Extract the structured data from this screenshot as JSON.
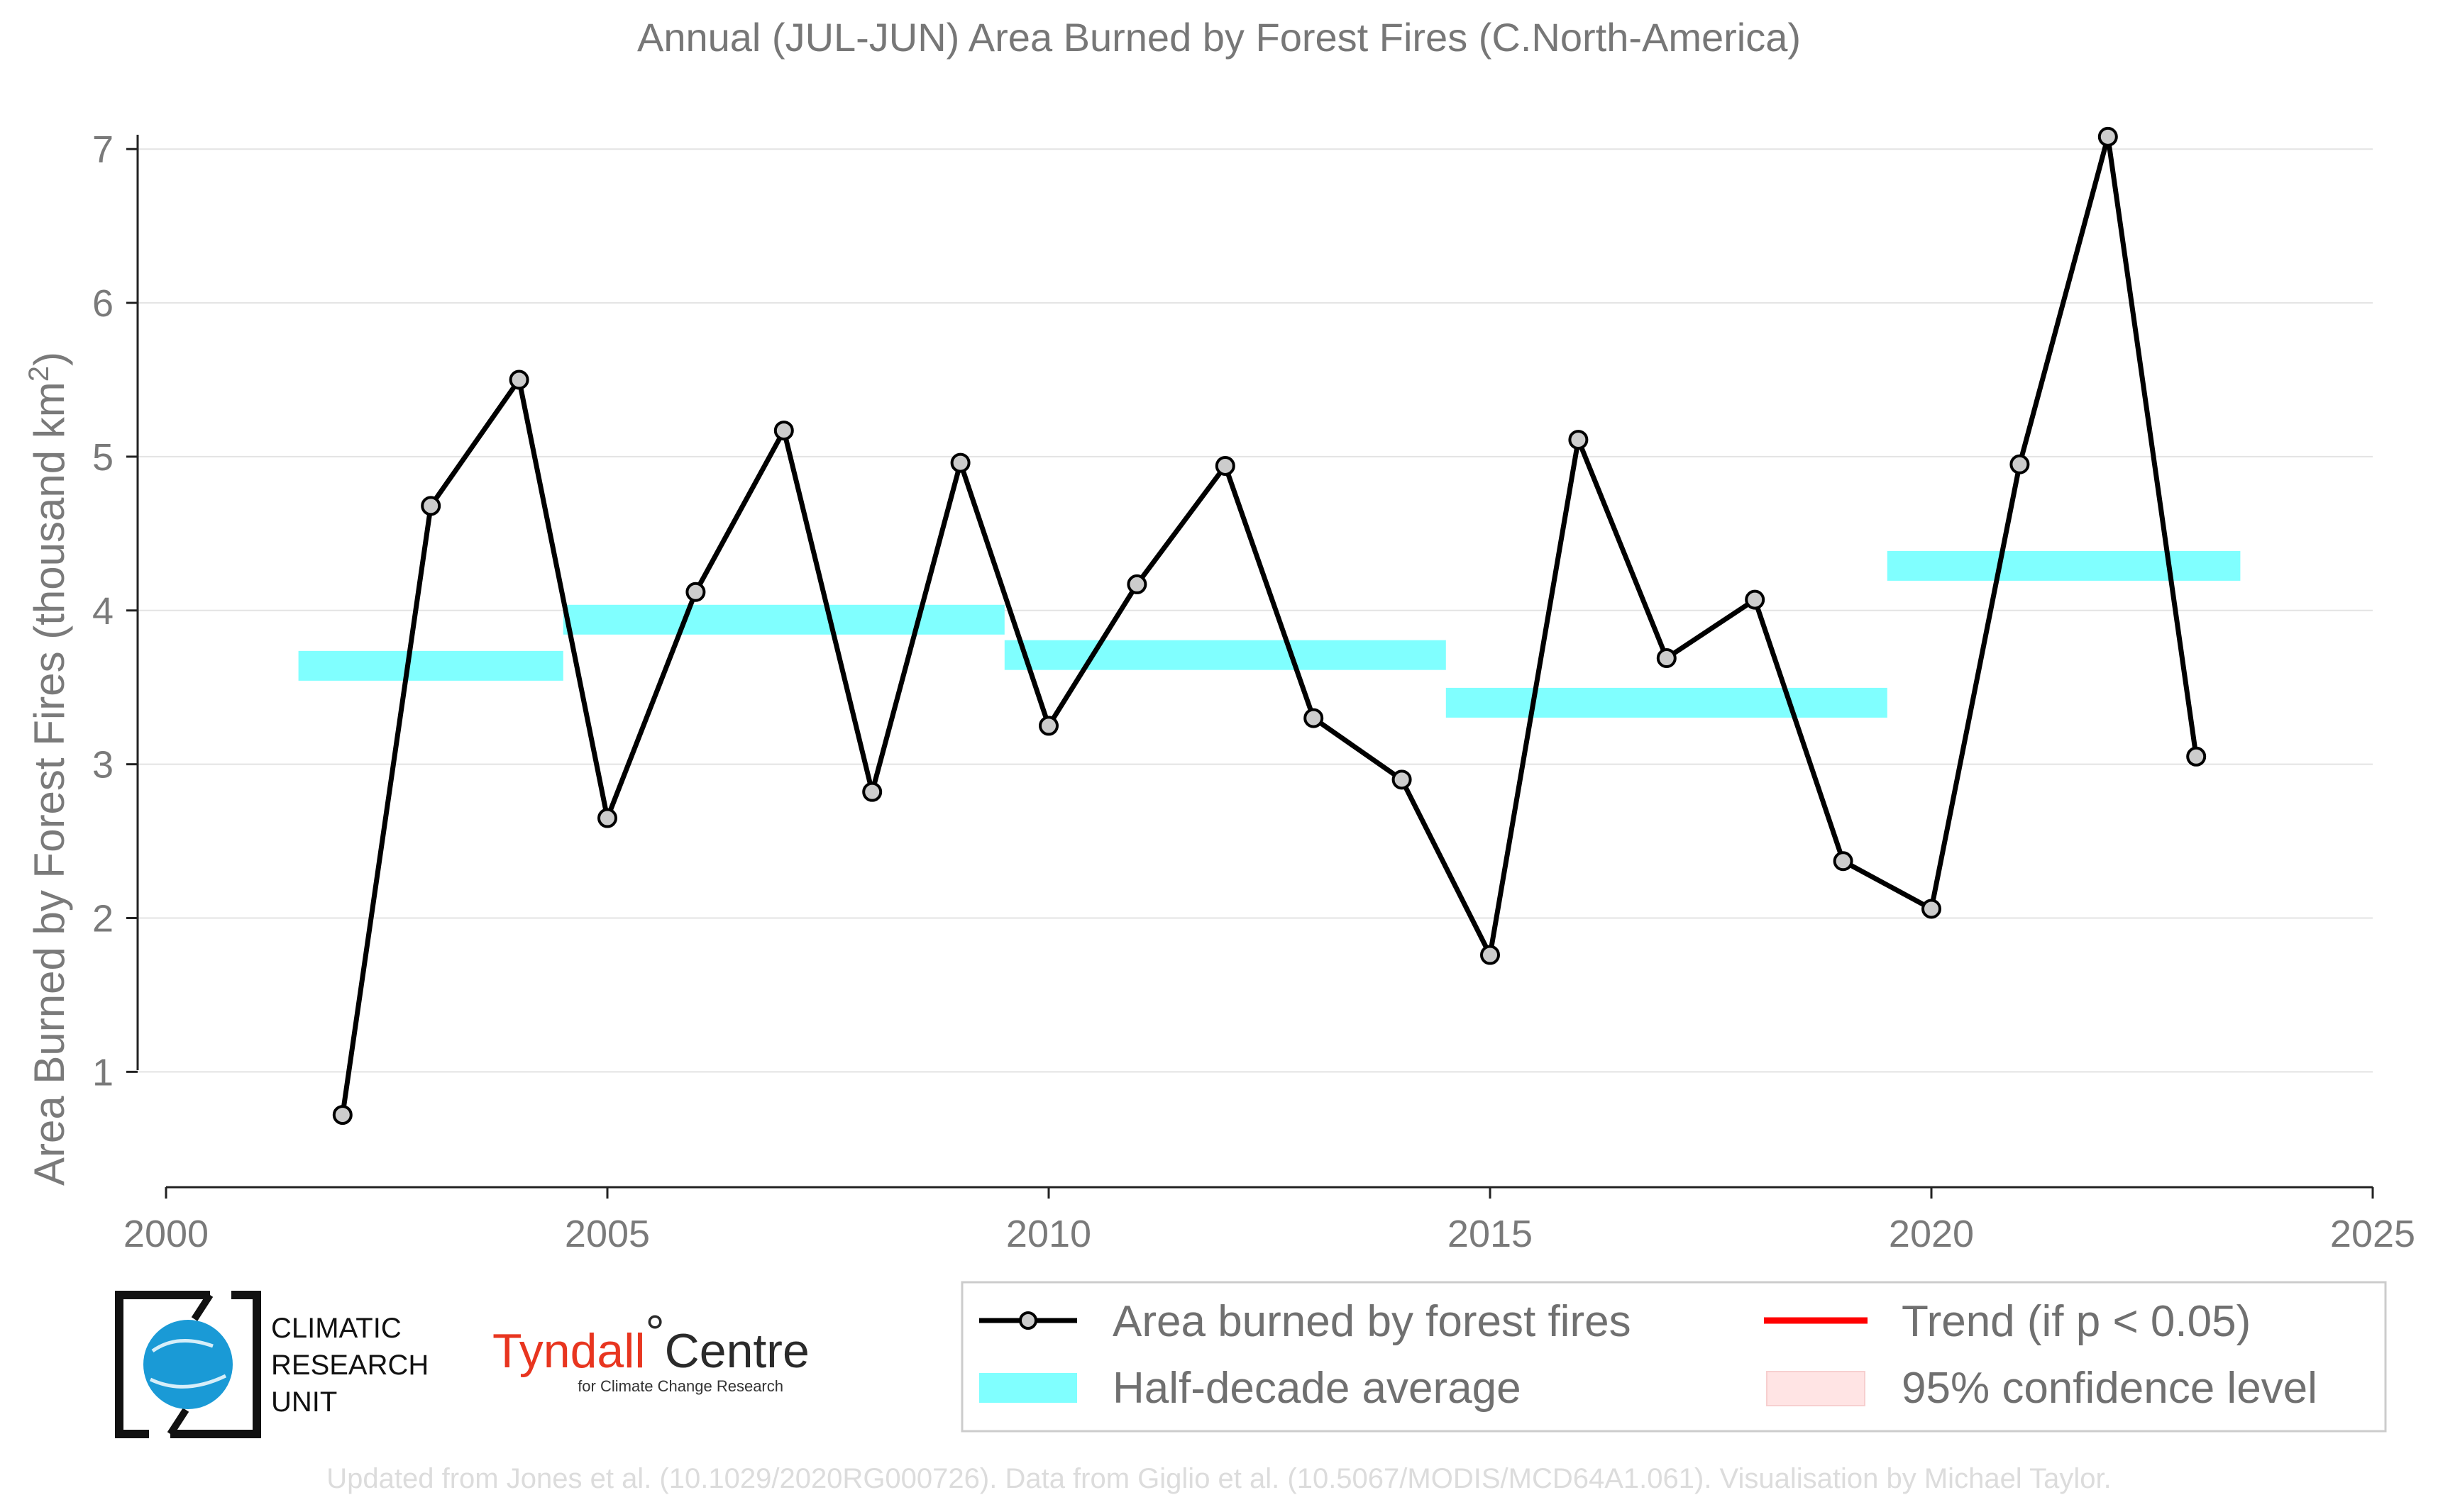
{
  "chart_data": {
    "type": "line",
    "title": "Annual (JUL-JUN) Area Burned by Forest Fires (C.North-America)",
    "ylabel": "Area Burned by Forest Fires (thousand km",
    "ylabel_sup": "2",
    "ylabel_close": ")",
    "xlim": [
      2000,
      2025
    ],
    "ylim": [
      0.25,
      7.25
    ],
    "x_ticks": [
      2000,
      2005,
      2010,
      2015,
      2020,
      2025
    ],
    "y_ticks": [
      1,
      2,
      3,
      4,
      5,
      6,
      7
    ],
    "grid": "horizontal",
    "legend_position": "bottom-right",
    "series": [
      {
        "name": "Area burned by forest fires",
        "color": "#000000",
        "marker_fill": "#cccccc",
        "x": [
          2002,
          2003,
          2004,
          2005,
          2006,
          2007,
          2008,
          2009,
          2010,
          2011,
          2012,
          2013,
          2014,
          2015,
          2016,
          2017,
          2018,
          2019,
          2020,
          2021,
          2022,
          2023
        ],
        "y": [
          0.72,
          4.68,
          5.5,
          2.65,
          4.12,
          5.17,
          2.82,
          4.96,
          3.25,
          4.17,
          4.94,
          3.3,
          2.9,
          1.76,
          5.11,
          3.69,
          4.07,
          2.37,
          2.06,
          4.95,
          7.08,
          3.05
        ]
      }
    ],
    "half_decade_average": {
      "name": "Half-decade average",
      "color": "#80ffff",
      "segments": [
        {
          "x_start": 2001.5,
          "x_end": 2004.5,
          "value": 3.64
        },
        {
          "x_start": 2004.5,
          "x_end": 2009.5,
          "value": 3.94
        },
        {
          "x_start": 2009.5,
          "x_end": 2014.5,
          "value": 3.71
        },
        {
          "x_start": 2014.5,
          "x_end": 2019.5,
          "value": 3.4
        },
        {
          "x_start": 2019.5,
          "x_end": 2023.5,
          "value": 4.29
        }
      ]
    },
    "legend": [
      {
        "key": "series",
        "label": "Area burned by forest fires",
        "color": "#000000"
      },
      {
        "key": "trend",
        "label": "Trend (if p < 0.05)",
        "color": "#ff0000"
      },
      {
        "key": "avg",
        "label": "Half-decade average",
        "color": "#80ffff"
      },
      {
        "key": "ci",
        "label": "95% confidence level",
        "color": "#ffe4e4"
      }
    ]
  },
  "logos": {
    "cru_lines": [
      "CLIMATIC",
      "RESEARCH",
      "UNIT"
    ],
    "tyndall_main": "Tyndall",
    "tyndall_degree": "°",
    "tyndall_centre": "Centre",
    "tyndall_sub": "for Climate Change Research"
  },
  "footer": "Updated from Jones et al. (10.1029/2020RG000726). Data from Giglio et al. (10.5067/MODIS/MCD64A1.061). Visualisation by Michael Taylor."
}
